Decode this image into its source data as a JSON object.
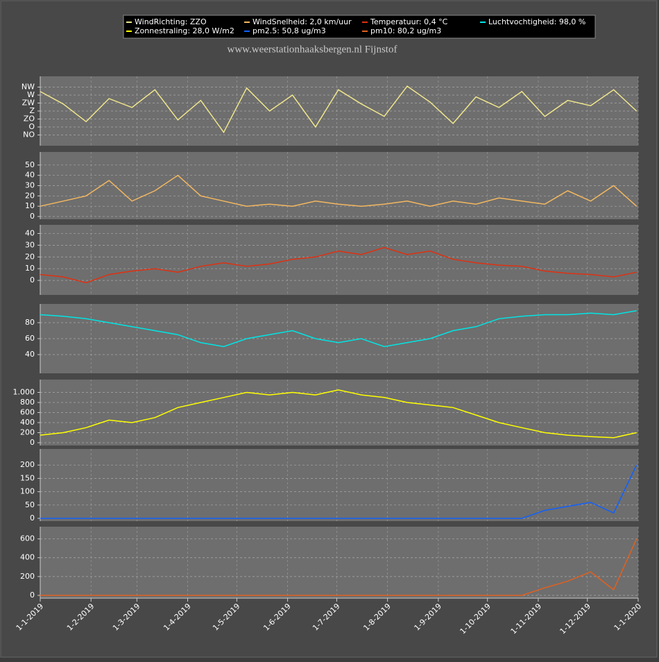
{
  "title": "www.weerstationhaaksbergen.nl Fijnstof",
  "chart_data": [
    {
      "type": "line",
      "ylim": [
        0,
        360
      ],
      "yticks": [
        {
          "value": 45,
          "label": "NO"
        },
        {
          "value": 90,
          "label": "O"
        },
        {
          "value": 135,
          "label": "ZO"
        },
        {
          "value": 180,
          "label": "Z"
        },
        {
          "value": 225,
          "label": "ZW"
        },
        {
          "value": 270,
          "label": "W"
        },
        {
          "value": 315,
          "label": "NW"
        }
      ],
      "grid": true,
      "xlim": [
        "1-1-2019",
        "1-1-2020"
      ],
      "x": [
        "1-1-2019",
        "15-1-2019",
        "29-1-2019",
        "12-2-2019",
        "26-2-2019",
        "12-3-2019",
        "26-3-2019",
        "9-4-2019",
        "23-4-2019",
        "7-5-2019",
        "21-5-2019",
        "4-6-2019",
        "18-6-2019",
        "2-7-2019",
        "16-7-2019",
        "30-7-2019",
        "13-8-2019",
        "27-8-2019",
        "10-9-2019",
        "24-9-2019",
        "8-10-2019",
        "22-10-2019",
        "5-11-2019",
        "19-11-2019",
        "3-12-2019",
        "17-12-2019",
        "31-12-2019"
      ],
      "series": [
        {
          "name": "WindRichting: ZZO",
          "color": "#f0e68c",
          "values": [
            290,
            220,
            120,
            250,
            200,
            300,
            130,
            240,
            60,
            310,
            180,
            270,
            90,
            300,
            220,
            150,
            320,
            230,
            110,
            260,
            200,
            290,
            150,
            240,
            210,
            300,
            180
          ]
        }
      ]
    },
    {
      "type": "line",
      "ylim": [
        0,
        60
      ],
      "yticks": [
        0,
        10,
        20,
        30,
        40,
        50
      ],
      "grid": true,
      "xlim": [
        "1-1-2019",
        "1-1-2020"
      ],
      "x": [
        "1-1-2019",
        "15-1-2019",
        "29-1-2019",
        "12-2-2019",
        "26-2-2019",
        "12-3-2019",
        "26-3-2019",
        "9-4-2019",
        "23-4-2019",
        "7-5-2019",
        "21-5-2019",
        "4-6-2019",
        "18-6-2019",
        "2-7-2019",
        "16-7-2019",
        "30-7-2019",
        "13-8-2019",
        "27-8-2019",
        "10-9-2019",
        "24-9-2019",
        "8-10-2019",
        "22-10-2019",
        "5-11-2019",
        "19-11-2019",
        "3-12-2019",
        "17-12-2019",
        "31-12-2019"
      ],
      "series": [
        {
          "name": "WindSnelheid: 2,0 km/uur",
          "color": "#f4b860",
          "values": [
            10,
            15,
            20,
            35,
            15,
            25,
            40,
            20,
            15,
            10,
            12,
            10,
            15,
            12,
            10,
            12,
            15,
            10,
            15,
            12,
            18,
            15,
            12,
            25,
            15,
            30,
            10
          ]
        }
      ]
    },
    {
      "type": "line",
      "ylim": [
        -10,
        45
      ],
      "yticks": [
        0,
        10,
        20,
        30,
        40
      ],
      "grid": true,
      "xlim": [
        "1-1-2019",
        "1-1-2020"
      ],
      "x": [
        "1-1-2019",
        "15-1-2019",
        "29-1-2019",
        "12-2-2019",
        "26-2-2019",
        "12-3-2019",
        "26-3-2019",
        "9-4-2019",
        "23-4-2019",
        "7-5-2019",
        "21-5-2019",
        "4-6-2019",
        "18-6-2019",
        "2-7-2019",
        "16-7-2019",
        "30-7-2019",
        "13-8-2019",
        "27-8-2019",
        "10-9-2019",
        "24-9-2019",
        "8-10-2019",
        "22-10-2019",
        "5-11-2019",
        "19-11-2019",
        "3-12-2019",
        "17-12-2019",
        "31-12-2019"
      ],
      "series": [
        {
          "name": "Temperatuur: 0,4 °C",
          "color": "#e03010",
          "values": [
            5,
            3,
            -2,
            5,
            8,
            10,
            7,
            12,
            15,
            12,
            14,
            18,
            20,
            25,
            22,
            28,
            22,
            25,
            18,
            15,
            13,
            12,
            8,
            6,
            5,
            3,
            7
          ]
        }
      ]
    },
    {
      "type": "line",
      "ylim": [
        20,
        100
      ],
      "yticks": [
        40,
        60,
        80
      ],
      "grid": true,
      "xlim": [
        "1-1-2019",
        "1-1-2020"
      ],
      "x": [
        "1-1-2019",
        "15-1-2019",
        "29-1-2019",
        "12-2-2019",
        "26-2-2019",
        "12-3-2019",
        "26-3-2019",
        "9-4-2019",
        "23-4-2019",
        "7-5-2019",
        "21-5-2019",
        "4-6-2019",
        "18-6-2019",
        "2-7-2019",
        "16-7-2019",
        "30-7-2019",
        "13-8-2019",
        "27-8-2019",
        "10-9-2019",
        "24-9-2019",
        "8-10-2019",
        "22-10-2019",
        "5-11-2019",
        "19-11-2019",
        "3-12-2019",
        "17-12-2019",
        "31-12-2019"
      ],
      "series": [
        {
          "name": "Luchtvochtigheid: 98,0 %",
          "color": "#00e5e5",
          "values": [
            90,
            88,
            85,
            80,
            75,
            70,
            65,
            55,
            50,
            60,
            65,
            70,
            60,
            55,
            60,
            50,
            55,
            60,
            70,
            75,
            85,
            88,
            90,
            90,
            92,
            90,
            95
          ]
        }
      ]
    },
    {
      "type": "line",
      "ylim": [
        0,
        1200
      ],
      "yticks": [
        0,
        200,
        400,
        600,
        800,
        {
          "value": 1000,
          "label": "1.000"
        }
      ],
      "grid": true,
      "xlim": [
        "1-1-2019",
        "1-1-2020"
      ],
      "x": [
        "1-1-2019",
        "15-1-2019",
        "29-1-2019",
        "12-2-2019",
        "26-2-2019",
        "12-3-2019",
        "26-3-2019",
        "9-4-2019",
        "23-4-2019",
        "7-5-2019",
        "21-5-2019",
        "4-6-2019",
        "18-6-2019",
        "2-7-2019",
        "16-7-2019",
        "30-7-2019",
        "13-8-2019",
        "27-8-2019",
        "10-9-2019",
        "24-9-2019",
        "8-10-2019",
        "22-10-2019",
        "5-11-2019",
        "19-11-2019",
        "3-12-2019",
        "17-12-2019",
        "31-12-2019"
      ],
      "series": [
        {
          "name": "Zonnestraling: 28,0 W/m2",
          "color": "#ffff00",
          "values": [
            150,
            200,
            300,
            450,
            400,
            500,
            700,
            800,
            900,
            1000,
            950,
            1000,
            950,
            1050,
            950,
            900,
            800,
            750,
            700,
            550,
            400,
            300,
            200,
            150,
            120,
            100,
            200
          ]
        }
      ]
    },
    {
      "type": "line",
      "ylim": [
        0,
        250
      ],
      "yticks": [
        0,
        50,
        100,
        150,
        200
      ],
      "grid": true,
      "xlim": [
        "1-1-2019",
        "1-1-2020"
      ],
      "x": [
        "1-1-2019",
        "15-1-2019",
        "29-1-2019",
        "12-2-2019",
        "26-2-2019",
        "12-3-2019",
        "26-3-2019",
        "9-4-2019",
        "23-4-2019",
        "7-5-2019",
        "21-5-2019",
        "4-6-2019",
        "18-6-2019",
        "2-7-2019",
        "16-7-2019",
        "30-7-2019",
        "13-8-2019",
        "27-8-2019",
        "10-9-2019",
        "24-9-2019",
        "8-10-2019",
        "22-10-2019",
        "5-11-2019",
        "19-11-2019",
        "3-12-2019",
        "17-12-2019",
        "31-12-2019"
      ],
      "series": [
        {
          "name": "pm2.5: 50,8 ug/m3",
          "color": "#1060ff",
          "values": [
            0,
            0,
            0,
            0,
            0,
            0,
            0,
            0,
            0,
            0,
            0,
            0,
            0,
            0,
            0,
            0,
            0,
            0,
            0,
            0,
            0,
            0,
            30,
            45,
            60,
            20,
            200
          ]
        }
      ]
    },
    {
      "type": "line",
      "ylim": [
        0,
        700
      ],
      "yticks": [
        0,
        200,
        400,
        600
      ],
      "grid": true,
      "xlim": [
        "1-1-2019",
        "1-1-2020"
      ],
      "xticks": [
        "1-1-2019",
        "1-2-2019",
        "1-3-2019",
        "1-4-2019",
        "1-5-2019",
        "1-6-2019",
        "1-7-2019",
        "1-8-2019",
        "1-9-2019",
        "1-10-2019",
        "1-11-2019",
        "1-12-2019",
        "1-1-2020"
      ],
      "x": [
        "1-1-2019",
        "15-1-2019",
        "29-1-2019",
        "12-2-2019",
        "26-2-2019",
        "12-3-2019",
        "26-3-2019",
        "9-4-2019",
        "23-4-2019",
        "7-5-2019",
        "21-5-2019",
        "4-6-2019",
        "18-6-2019",
        "2-7-2019",
        "16-7-2019",
        "30-7-2019",
        "13-8-2019",
        "27-8-2019",
        "10-9-2019",
        "24-9-2019",
        "8-10-2019",
        "22-10-2019",
        "5-11-2019",
        "19-11-2019",
        "3-12-2019",
        "17-12-2019",
        "31-12-2019"
      ],
      "series": [
        {
          "name": "pm10: 80,2 ug/m3",
          "color": "#e06020",
          "values": [
            0,
            0,
            0,
            0,
            0,
            0,
            0,
            0,
            0,
            0,
            0,
            0,
            0,
            0,
            0,
            0,
            0,
            0,
            0,
            0,
            0,
            0,
            80,
            150,
            250,
            60,
            600
          ]
        }
      ]
    }
  ]
}
